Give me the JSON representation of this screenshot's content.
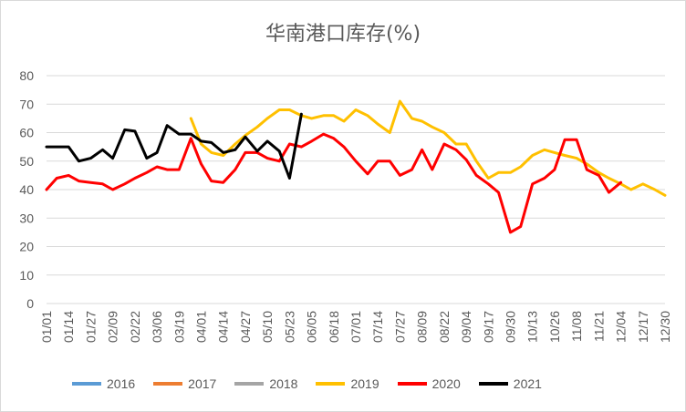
{
  "chart_data": {
    "type": "line",
    "title": "华南港口库存(%)",
    "ylim": [
      0,
      80
    ],
    "y_ticks": [
      "0",
      "10",
      "20",
      "30",
      "40",
      "50",
      "60",
      "70",
      "80"
    ],
    "x_ticks": [
      "01/01",
      "01/14",
      "01/27",
      "02/09",
      "02/22",
      "03/06",
      "03/19",
      "04/01",
      "04/14",
      "04/27",
      "05/10",
      "05/23",
      "06/05",
      "06/18",
      "07/01",
      "07/14",
      "07/27",
      "08/09",
      "08/22",
      "09/04",
      "09/17",
      "09/30",
      "10/13",
      "10/26",
      "11/08",
      "11/21",
      "12/04",
      "12/17",
      "12/30"
    ],
    "grid": true,
    "legend_position": "bottom",
    "series": [
      {
        "name": "2016",
        "color": "#5b9bd5",
        "points": []
      },
      {
        "name": "2017",
        "color": "#ed7d31",
        "points": []
      },
      {
        "name": "2018",
        "color": "#a5a5a5",
        "points": []
      },
      {
        "name": "2019",
        "color": "#ffc000",
        "points": [
          [
            "03/26",
            65
          ],
          [
            "04/01",
            56
          ],
          [
            "04/07",
            53
          ],
          [
            "04/14",
            52
          ],
          [
            "04/21",
            56
          ],
          [
            "04/27",
            59
          ],
          [
            "05/04",
            62
          ],
          [
            "05/10",
            65
          ],
          [
            "05/17",
            68
          ],
          [
            "05/23",
            68
          ],
          [
            "05/30",
            66
          ],
          [
            "06/05",
            65
          ],
          [
            "06/12",
            66
          ],
          [
            "06/18",
            66
          ],
          [
            "06/24",
            64
          ],
          [
            "07/01",
            68
          ],
          [
            "07/08",
            66
          ],
          [
            "07/14",
            63
          ],
          [
            "07/21",
            60
          ],
          [
            "07/27",
            71
          ],
          [
            "08/03",
            65
          ],
          [
            "08/09",
            64
          ],
          [
            "08/15",
            62
          ],
          [
            "08/22",
            60
          ],
          [
            "08/29",
            56
          ],
          [
            "09/04",
            56
          ],
          [
            "09/10",
            50
          ],
          [
            "09/17",
            44
          ],
          [
            "09/23",
            46
          ],
          [
            "09/30",
            46
          ],
          [
            "10/06",
            48
          ],
          [
            "10/13",
            52
          ],
          [
            "10/20",
            54
          ],
          [
            "10/26",
            53
          ],
          [
            "11/01",
            52
          ],
          [
            "11/08",
            51
          ],
          [
            "11/14",
            49
          ],
          [
            "11/21",
            46
          ],
          [
            "11/27",
            44
          ],
          [
            "12/04",
            42
          ],
          [
            "12/10",
            40
          ],
          [
            "12/17",
            42
          ],
          [
            "12/24",
            40
          ],
          [
            "12/30",
            38
          ]
        ]
      },
      {
        "name": "2020",
        "color": "#ff0000",
        "points": [
          [
            "01/01",
            40
          ],
          [
            "01/07",
            44
          ],
          [
            "01/14",
            45
          ],
          [
            "01/20",
            43
          ],
          [
            "01/27",
            42.5
          ],
          [
            "02/03",
            42
          ],
          [
            "02/09",
            40
          ],
          [
            "02/16",
            42
          ],
          [
            "02/22",
            44
          ],
          [
            "02/29",
            46
          ],
          [
            "03/06",
            48
          ],
          [
            "03/12",
            47
          ],
          [
            "03/19",
            47
          ],
          [
            "03/26",
            58
          ],
          [
            "04/01",
            49
          ],
          [
            "04/07",
            43
          ],
          [
            "04/14",
            42.5
          ],
          [
            "04/21",
            47
          ],
          [
            "04/27",
            53
          ],
          [
            "05/04",
            53
          ],
          [
            "05/10",
            51
          ],
          [
            "05/17",
            50
          ],
          [
            "05/23",
            56
          ],
          [
            "05/30",
            55
          ],
          [
            "06/05",
            57
          ],
          [
            "06/12",
            59.5
          ],
          [
            "06/18",
            58
          ],
          [
            "06/24",
            55
          ],
          [
            "07/01",
            50
          ],
          [
            "07/08",
            45.5
          ],
          [
            "07/14",
            50
          ],
          [
            "07/21",
            50
          ],
          [
            "07/27",
            45
          ],
          [
            "08/03",
            47
          ],
          [
            "08/09",
            54
          ],
          [
            "08/15",
            47
          ],
          [
            "08/22",
            56
          ],
          [
            "08/29",
            54
          ],
          [
            "09/04",
            50.5
          ],
          [
            "09/10",
            45
          ],
          [
            "09/17",
            42
          ],
          [
            "09/23",
            39
          ],
          [
            "09/30",
            25
          ],
          [
            "10/06",
            27
          ],
          [
            "10/13",
            42
          ],
          [
            "10/20",
            44
          ],
          [
            "10/26",
            47
          ],
          [
            "11/01",
            57.5
          ],
          [
            "11/08",
            57.5
          ],
          [
            "11/14",
            47
          ],
          [
            "11/21",
            45
          ],
          [
            "11/27",
            39
          ],
          [
            "12/04",
            42.5
          ]
        ]
      },
      {
        "name": "2021",
        "color": "#000000",
        "points": [
          [
            "01/01",
            55
          ],
          [
            "01/07",
            55
          ],
          [
            "01/14",
            55
          ],
          [
            "01/20",
            50
          ],
          [
            "01/27",
            51
          ],
          [
            "02/03",
            54
          ],
          [
            "02/09",
            51
          ],
          [
            "02/16",
            61
          ],
          [
            "02/22",
            60.5
          ],
          [
            "02/29",
            51
          ],
          [
            "03/06",
            53
          ],
          [
            "03/12",
            62.5
          ],
          [
            "03/19",
            59.5
          ],
          [
            "03/26",
            59.5
          ],
          [
            "04/01",
            57
          ],
          [
            "04/07",
            56.5
          ],
          [
            "04/14",
            53
          ],
          [
            "04/21",
            54
          ],
          [
            "04/27",
            58.5
          ],
          [
            "05/04",
            53.5
          ],
          [
            "05/10",
            57
          ],
          [
            "05/17",
            53.5
          ],
          [
            "05/23",
            44
          ],
          [
            "05/30",
            66.5
          ]
        ]
      }
    ]
  }
}
